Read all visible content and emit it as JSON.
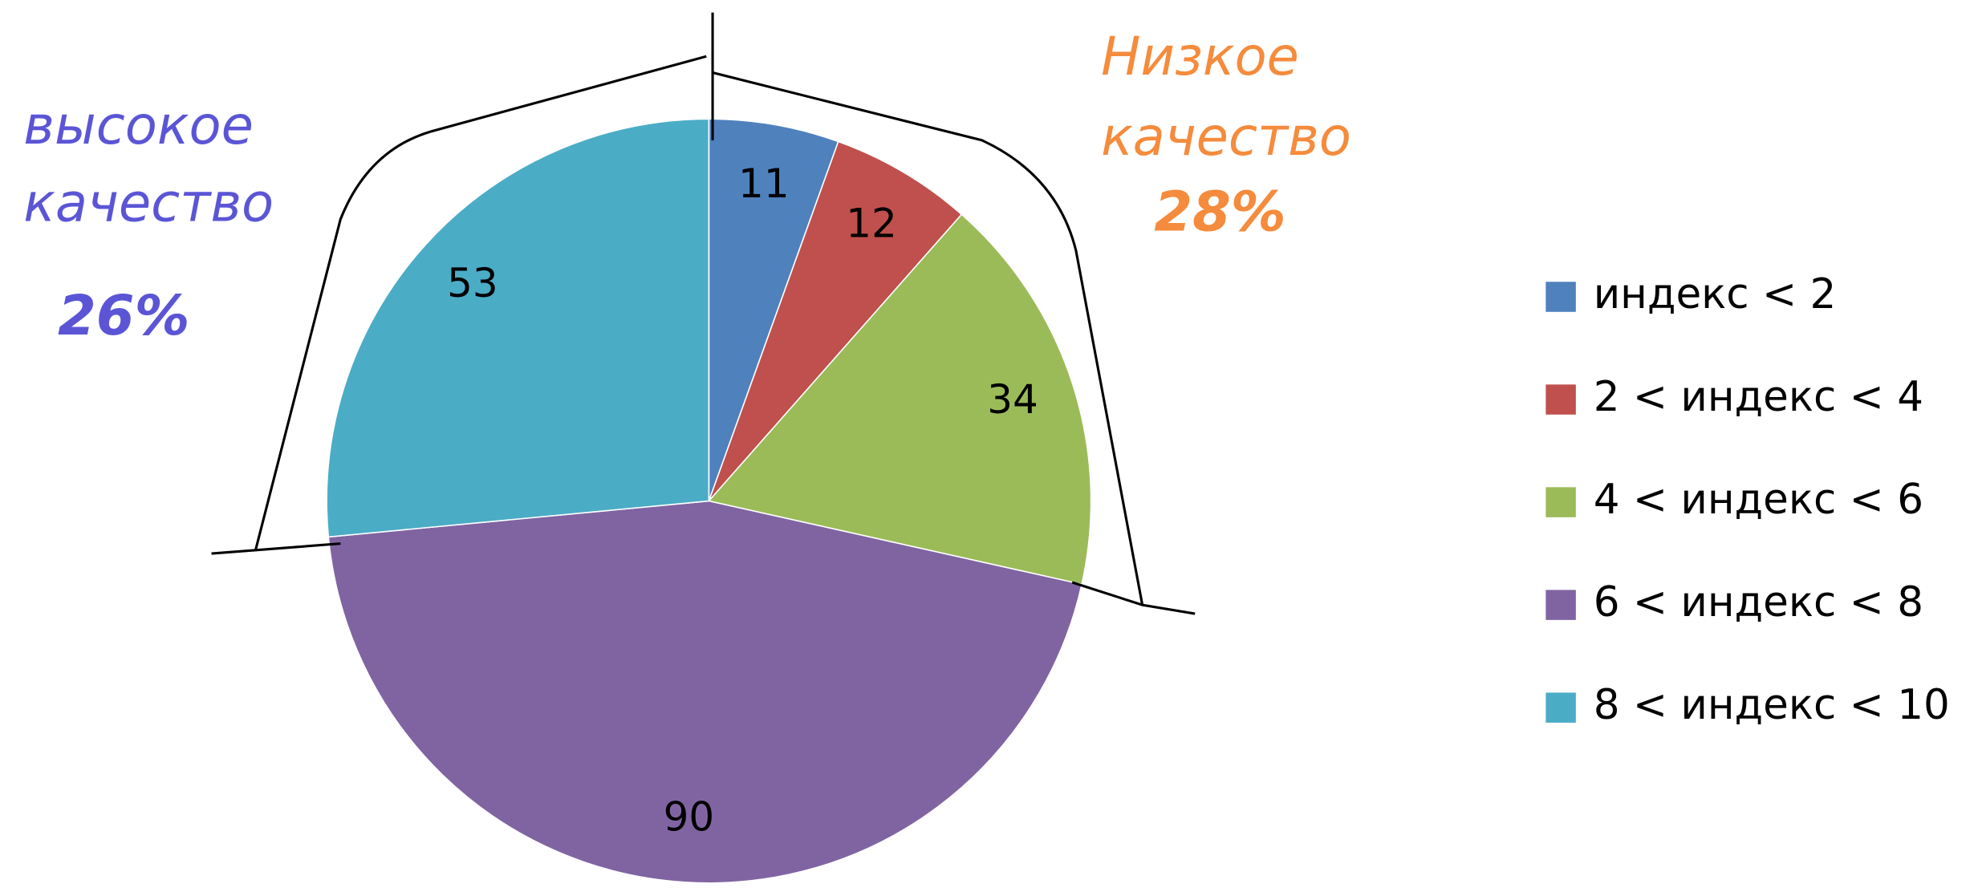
{
  "chart_data": {
    "type": "pie",
    "categories": [
      "индекс < 2",
      "2 < индекс < 4",
      "4 < индекс < 6",
      "6 < индекс < 8",
      "8 < индекс < 10"
    ],
    "values": [
      11,
      12,
      34,
      90,
      53
    ],
    "colors": [
      "#4f81bd",
      "#c0504d",
      "#9bbb59",
      "#8064a2",
      "#4bacc6"
    ],
    "legend": "right",
    "annotations": [
      {
        "lines": [
          "высокое",
          "качество"
        ],
        "label": "26%",
        "color": "#5b55d6"
      },
      {
        "lines": [
          "Низкое",
          "качество"
        ],
        "label": "28%",
        "color": "#f58b3c"
      }
    ]
  }
}
